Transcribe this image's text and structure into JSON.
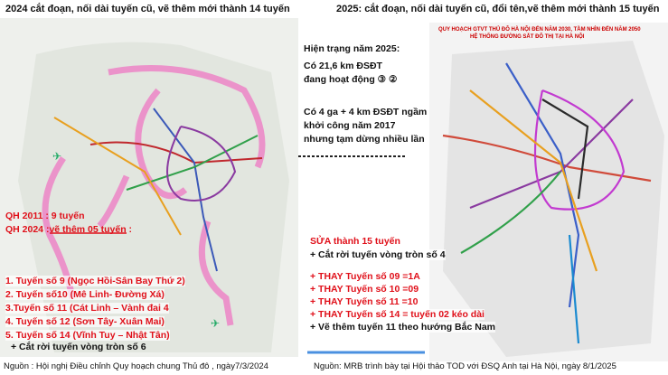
{
  "left": {
    "title": "2024 cắt đoạn, nối dài tuyến cũ, vẽ thêm mới thành 14 tuyến",
    "heading": [
      "QH 2011 : 9 tuyến",
      "QH 2024 :vẽ thêm 05 tuyến :"
    ],
    "items": [
      "1. Tuyến số 9 (Ngọc Hồi-Sân Bay Thứ 2)",
      "2. Tuyến số10 (Mê Linh- Đường Xá)",
      "3.Tuyến số 11 (Cát Linh – Vành đai 4",
      "4. Tuyến số 12 (Sơn Tây- Xuân Mai)",
      "5. Tuyến số 14 (Vĩnh Tuy – Nhật Tân)"
    ],
    "note": "+ Cắt rời tuyến vòng tròn số 6",
    "source": "Nguồn : Hội nghị Điều chỉnh Quy hoạch chung Thủ đô , ngày7/3/2024"
  },
  "middle": {
    "status_title": "Hiện trạng năm 2025:",
    "status_lines": [
      "Có 21,6 km ĐSĐT",
      "đang hoạt động ③ ②"
    ],
    "underground_lines": [
      "Có 4 ga + 4 km ĐSĐT ngầm",
      "khởi công năm 2017",
      "nhưng tạm dừng nhiều lần"
    ]
  },
  "right": {
    "title": "2025: cắt đoạn, nối dài tuyến cũ, đổi tên,vẽ thêm mới thành 15 tuyến",
    "map_header": [
      "QUY HOẠCH GTVT THỦ ĐÔ HÀ NỘI ĐẾN NĂM 2030, TẦM NHÌN ĐẾN NĂM 2050",
      "HỆ THỐNG ĐƯỜNG SẮT ĐÔ THỊ TẠI HÀ NỘI"
    ],
    "heading": "SỬA thành 15 tuyến",
    "items": [
      "+ Cắt rời tuyến vòng tròn số 4",
      "+ THAY Tuyến số 09 =1A",
      "+ THAY Tuyến số 10 =09",
      "+ THAY Tuyến số 11 =10",
      "+ THAY Tuyến số 14 = tuyến 02 kéo dài",
      "+ Vẽ thêm tuyến 11 theo hướng Bắc Nam"
    ],
    "source": "Nguồn: MRB trình bày tại Hội thảo TOD với ĐSQ Anh tại Hà Nội, ngày 8/1/2025"
  }
}
